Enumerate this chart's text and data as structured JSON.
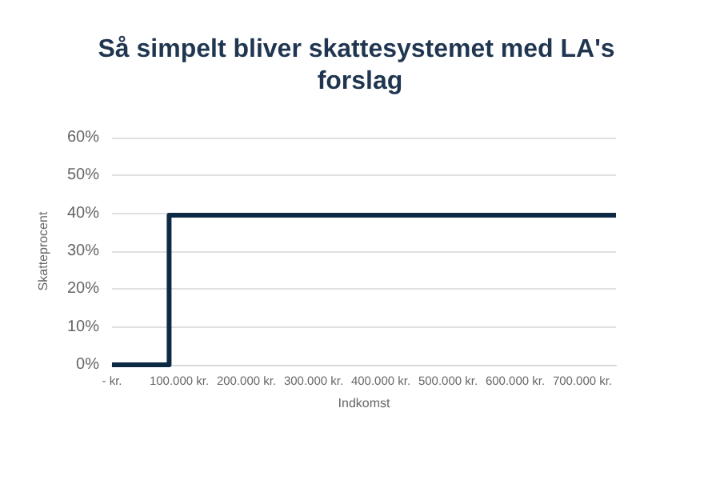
{
  "chart_data": {
    "type": "step",
    "title": "Så simpelt bliver skattesystemet med LA's forslag",
    "xlabel": "Indkomst",
    "ylabel": "Skatteprocent",
    "x": [
      0,
      85000,
      750000
    ],
    "series": [
      {
        "color": "#0d2a45",
        "values": [
          0,
          39.5,
          39.5
        ]
      }
    ],
    "xlim": [
      0,
      750000
    ],
    "xticks": [
      {
        "value": 0,
        "label": "- kr."
      },
      {
        "value": 100000,
        "label": "100.000 kr."
      },
      {
        "value": 200000,
        "label": "200.000 kr."
      },
      {
        "value": 300000,
        "label": "300.000 kr."
      },
      {
        "value": 400000,
        "label": "400.000 kr."
      },
      {
        "value": 500000,
        "label": "500.000 kr."
      },
      {
        "value": 600000,
        "label": "600.000 kr."
      },
      {
        "value": 700000,
        "label": "700.000 kr."
      }
    ],
    "ylim": [
      0,
      60
    ],
    "yticks": [
      {
        "value": 0,
        "label": "0%"
      },
      {
        "value": 10,
        "label": "10%"
      },
      {
        "value": 20,
        "label": "20%"
      },
      {
        "value": 30,
        "label": "30%"
      },
      {
        "value": 40,
        "label": "40%"
      },
      {
        "value": 50,
        "label": "50%"
      },
      {
        "value": 60,
        "label": "60%"
      }
    ],
    "grid": "y",
    "marker": "none",
    "line_style": "solid"
  }
}
